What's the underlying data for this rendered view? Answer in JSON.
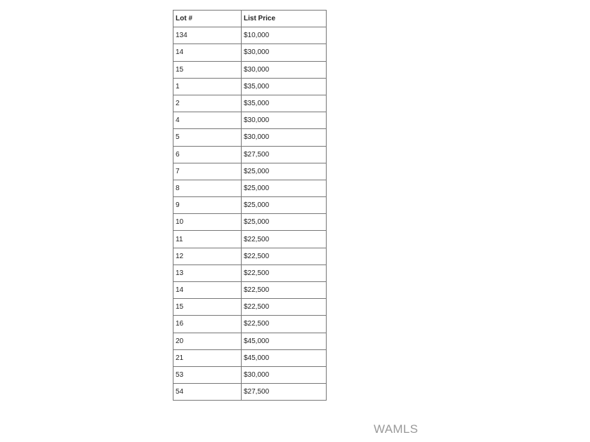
{
  "table": {
    "headers": [
      "Lot #",
      "List Price"
    ],
    "rows": [
      [
        "134",
        "$10,000"
      ],
      [
        "14",
        "$30,000"
      ],
      [
        "15",
        "$30,000"
      ],
      [
        "1",
        "$35,000"
      ],
      [
        "2",
        "$35,000"
      ],
      [
        "4",
        "$30,000"
      ],
      [
        "5",
        "$30,000"
      ],
      [
        "6",
        "$27,500"
      ],
      [
        "7",
        "$25,000"
      ],
      [
        "8",
        "$25,000"
      ],
      [
        "9",
        "$25,000"
      ],
      [
        "10",
        "$25,000"
      ],
      [
        "11",
        "$22,500"
      ],
      [
        "12",
        "$22,500"
      ],
      [
        "13",
        "$22,500"
      ],
      [
        "14",
        "$22,500"
      ],
      [
        "15",
        "$22,500"
      ],
      [
        "16",
        "$22,500"
      ],
      [
        "20",
        "$45,000"
      ],
      [
        "21",
        "$45,000"
      ],
      [
        "53",
        "$30,000"
      ],
      [
        "54",
        "$27,500"
      ]
    ]
  },
  "watermark": "WAMLS"
}
